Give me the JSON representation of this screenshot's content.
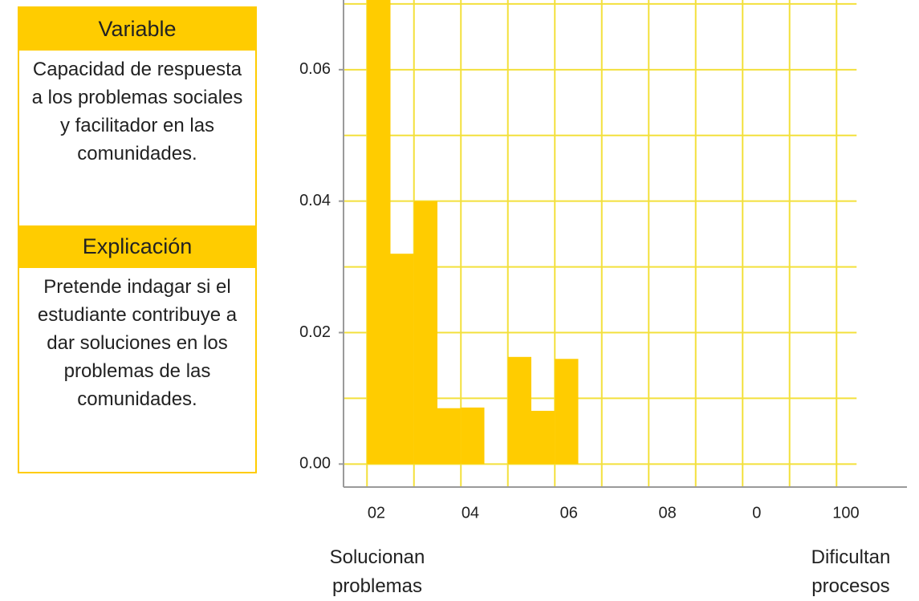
{
  "panel": {
    "sections": [
      {
        "heading": "Variable",
        "text": "Capacidad de respuesta a los problemas sociales y facilitador en las comunidades."
      },
      {
        "heading": "Explicación",
        "text": "Pretende indagar si el estudiante contribuye a dar soluciones en los problemas de las comunidades."
      }
    ]
  },
  "chart_data": {
    "type": "histogram",
    "color": "#ffcc00",
    "grid_color": "#f3e03c",
    "axis_color": "#9a9a9a",
    "bins": [
      0,
      5,
      10,
      15,
      20,
      25,
      30,
      35,
      40,
      45
    ],
    "values": [
      0.075,
      0.032,
      0.04,
      0.0085,
      0.0086,
      0,
      0.0163,
      0.0081,
      0.016
    ],
    "xlim": [
      -5,
      115
    ],
    "ylim": [
      -0.0035,
      0.0706
    ],
    "xticks": [
      {
        "value": 2,
        "label": "02"
      },
      {
        "value": 22,
        "label": "04"
      },
      {
        "value": 43,
        "label": "06"
      },
      {
        "value": 64,
        "label": "08"
      },
      {
        "value": 83,
        "label": "0"
      },
      {
        "value": 102,
        "label": "100"
      }
    ],
    "yticks": [
      {
        "value": 0,
        "label": "0.00"
      },
      {
        "value": 0.02,
        "label": "0.02"
      },
      {
        "value": 0.04,
        "label": "0.04"
      },
      {
        "value": 0.06,
        "label": "0.06"
      }
    ],
    "xgrid": [
      0,
      10,
      20,
      30,
      40,
      50,
      60,
      70,
      80,
      90,
      100
    ],
    "ygrid": [
      0,
      0.01,
      0.02,
      0.03,
      0.04,
      0.05,
      0.06,
      0.07
    ],
    "left_label": "Solucionan problemas",
    "right_label": "Dificultan procesos"
  }
}
